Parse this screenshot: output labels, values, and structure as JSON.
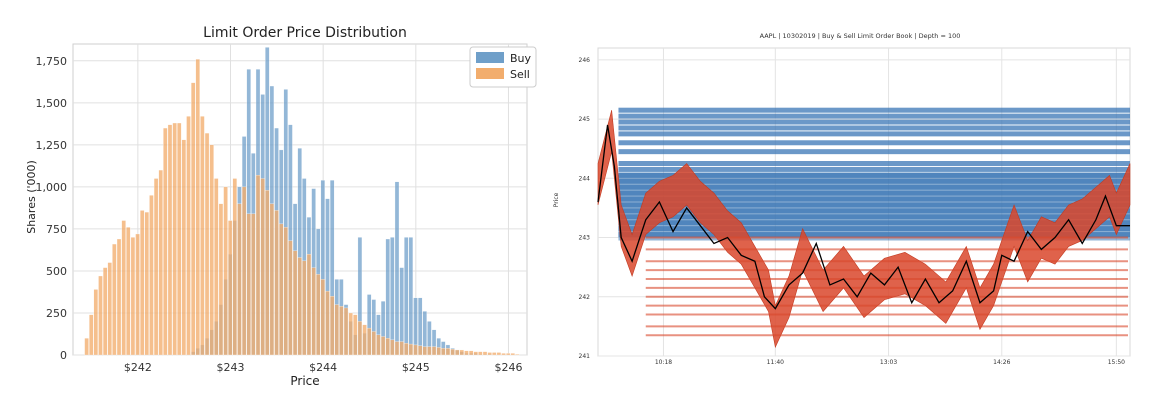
{
  "chart_data": [
    {
      "type": "bar",
      "title": "Limit Order Price Distribution",
      "xlabel": "Price",
      "ylabel": "Shares ('000)",
      "xlim": [
        241.3,
        246.2
      ],
      "ylim": [
        0,
        1850
      ],
      "bin_width": 0.05,
      "grid": true,
      "legend_position": "top-right",
      "xticks": [
        242,
        243,
        244,
        245,
        246
      ],
      "xtick_labels": [
        "$242",
        "$243",
        "$244",
        "$245",
        "$246"
      ],
      "yticks": [
        0,
        250,
        500,
        750,
        1000,
        1250,
        1500,
        1750
      ],
      "ytick_labels": [
        "0",
        "250",
        "500",
        "750",
        "1,000",
        "1,250",
        "1,500",
        "1,750"
      ],
      "series": [
        {
          "name": "Buy",
          "color": "#6f9fc9",
          "x": [
            242.6,
            242.65,
            242.7,
            242.75,
            242.8,
            242.85,
            242.9,
            242.95,
            243.0,
            243.05,
            243.1,
            243.15,
            243.2,
            243.25,
            243.3,
            243.35,
            243.4,
            243.45,
            243.5,
            243.55,
            243.6,
            243.65,
            243.7,
            243.75,
            243.8,
            243.85,
            243.9,
            243.95,
            244.0,
            244.05,
            244.1,
            244.15,
            244.2,
            244.25,
            244.3,
            244.35,
            244.4,
            244.45,
            244.5,
            244.55,
            244.6,
            244.65,
            244.7,
            244.75,
            244.8,
            244.85,
            244.9,
            244.95,
            245.0,
            245.05,
            245.1,
            245.15,
            245.2,
            245.25,
            245.3,
            245.35,
            245.4,
            245.45,
            245.5,
            245.55,
            245.6,
            245.65,
            245.7,
            245.75,
            245.8
          ],
          "values": [
            20,
            40,
            60,
            100,
            150,
            200,
            300,
            450,
            600,
            800,
            1000,
            1300,
            1700,
            1200,
            1700,
            1550,
            1830,
            1600,
            1350,
            1220,
            1580,
            1370,
            900,
            1230,
            1050,
            820,
            990,
            750,
            1040,
            930,
            1040,
            450,
            450,
            300,
            200,
            120,
            700,
            130,
            360,
            330,
            240,
            320,
            690,
            700,
            1030,
            520,
            700,
            700,
            340,
            340,
            260,
            200,
            150,
            100,
            80,
            60,
            40,
            30,
            20,
            10,
            10,
            10,
            5,
            5,
            5
          ]
        },
        {
          "name": "Sell",
          "color": "#f2ad6d",
          "x": [
            241.45,
            241.5,
            241.55,
            241.6,
            241.65,
            241.7,
            241.75,
            241.8,
            241.85,
            241.9,
            241.95,
            242.0,
            242.05,
            242.1,
            242.15,
            242.2,
            242.25,
            242.3,
            242.35,
            242.4,
            242.45,
            242.5,
            242.55,
            242.6,
            242.65,
            242.7,
            242.75,
            242.8,
            242.85,
            242.9,
            242.95,
            243.0,
            243.05,
            243.1,
            243.15,
            243.2,
            243.25,
            243.3,
            243.35,
            243.4,
            243.45,
            243.5,
            243.55,
            243.6,
            243.65,
            243.7,
            243.75,
            243.8,
            243.85,
            243.9,
            243.95,
            244.0,
            244.05,
            244.1,
            244.15,
            244.2,
            244.25,
            244.3,
            244.35,
            244.4,
            244.45,
            244.5,
            244.55,
            244.6,
            244.65,
            244.7,
            244.75,
            244.8,
            244.85,
            244.9,
            244.95,
            245.0,
            245.05,
            245.1,
            245.15,
            245.2,
            245.25,
            245.3,
            245.35,
            245.4,
            245.45,
            245.5,
            245.55,
            245.6,
            245.65,
            245.7,
            245.75,
            245.8,
            245.85,
            245.9,
            245.95,
            246.0,
            246.05,
            246.1
          ],
          "values": [
            100,
            240,
            390,
            470,
            520,
            550,
            660,
            690,
            800,
            760,
            700,
            720,
            860,
            850,
            950,
            1050,
            1100,
            1350,
            1370,
            1380,
            1380,
            1280,
            1420,
            1620,
            1760,
            1420,
            1320,
            1250,
            1050,
            900,
            1000,
            800,
            1050,
            900,
            1000,
            840,
            840,
            1070,
            1050,
            980,
            900,
            860,
            780,
            760,
            680,
            620,
            580,
            560,
            600,
            520,
            480,
            450,
            380,
            350,
            300,
            290,
            280,
            250,
            240,
            200,
            180,
            160,
            140,
            120,
            110,
            100,
            90,
            80,
            80,
            70,
            65,
            60,
            55,
            50,
            50,
            50,
            45,
            40,
            40,
            35,
            30,
            30,
            25,
            25,
            20,
            20,
            20,
            15,
            15,
            15,
            10,
            10,
            10,
            5
          ]
        }
      ]
    },
    {
      "type": "line",
      "title": "AAPL | 10302019 | Buy & Sell Limit Order Book | Depth = 100",
      "xlabel": "",
      "ylabel": "Price",
      "ylim": [
        241,
        246.2
      ],
      "yticks": [
        241,
        242,
        243,
        244,
        245,
        246
      ],
      "ytick_labels": [
        "241",
        "242",
        "243",
        "244",
        "245",
        "246"
      ],
      "xlim": [
        "09:30",
        "16:00"
      ],
      "xticks": [
        "10:18",
        "11:40",
        "13:03",
        "14:26",
        "15:50"
      ],
      "xtick_labels": [
        "10:18",
        "11:40",
        "13:03",
        "14:26",
        "15:50"
      ],
      "grid": true,
      "series": [
        {
          "name": "",
          "color": "#3a76b5",
          "description_levels": [
            245.15,
            245.05,
            244.95,
            244.85,
            244.75,
            244.6,
            244.45,
            244.25,
            244.15,
            244.05,
            243.95,
            243.85,
            243.75,
            243.65,
            243.55,
            243.45,
            243.35,
            243.25,
            243.15,
            243.05
          ],
          "x": [
            "09:45",
            "16:00"
          ]
        },
        {
          "name": "",
          "color": "#d9472b",
          "x": [
            "09:30",
            "09:40",
            "09:47",
            "09:55",
            "10:05",
            "10:15",
            "10:25",
            "10:35",
            "10:45",
            "10:55",
            "11:05",
            "11:15",
            "11:25",
            "11:35",
            "11:40",
            "11:50",
            "12:00",
            "12:15",
            "12:30",
            "12:45",
            "13:00",
            "13:15",
            "13:30",
            "13:45",
            "14:00",
            "14:10",
            "14:20",
            "14:26",
            "14:35",
            "14:45",
            "14:55",
            "15:05",
            "15:15",
            "15:25",
            "15:35",
            "15:45",
            "15:50",
            "16:00"
          ],
          "values": [
            243.9,
            244.8,
            243.2,
            242.7,
            243.4,
            243.6,
            243.7,
            243.9,
            243.6,
            243.4,
            243.1,
            242.9,
            242.5,
            242.1,
            241.5,
            242.0,
            242.8,
            242.1,
            242.5,
            242.0,
            242.3,
            242.4,
            242.2,
            241.9,
            242.5,
            241.8,
            242.2,
            242.6,
            243.2,
            242.6,
            243.0,
            242.9,
            243.2,
            243.3,
            243.5,
            243.7,
            243.4,
            243.9
          ]
        },
        {
          "name": "",
          "color": "#000000",
          "x": [
            "09:30",
            "09:37",
            "09:42",
            "09:47",
            "09:55",
            "10:05",
            "10:15",
            "10:25",
            "10:35",
            "10:45",
            "10:55",
            "11:05",
            "11:15",
            "11:25",
            "11:32",
            "11:40",
            "11:50",
            "12:00",
            "12:10",
            "12:20",
            "12:30",
            "12:40",
            "12:50",
            "13:00",
            "13:10",
            "13:20",
            "13:30",
            "13:40",
            "13:50",
            "14:00",
            "14:10",
            "14:20",
            "14:26",
            "14:35",
            "14:45",
            "14:55",
            "15:05",
            "15:15",
            "15:25",
            "15:35",
            "15:42",
            "15:50",
            "16:00"
          ],
          "values": [
            243.6,
            244.9,
            244.2,
            243.0,
            242.6,
            243.3,
            243.6,
            243.1,
            243.5,
            243.2,
            242.9,
            243.0,
            242.7,
            242.6,
            242.0,
            241.8,
            242.2,
            242.4,
            242.9,
            242.2,
            242.3,
            242.0,
            242.4,
            242.2,
            242.5,
            241.9,
            242.3,
            241.9,
            242.1,
            242.6,
            241.9,
            242.1,
            242.7,
            242.6,
            243.1,
            242.8,
            243.0,
            243.3,
            242.9,
            243.3,
            243.7,
            243.2,
            243.2
          ]
        }
      ]
    }
  ]
}
